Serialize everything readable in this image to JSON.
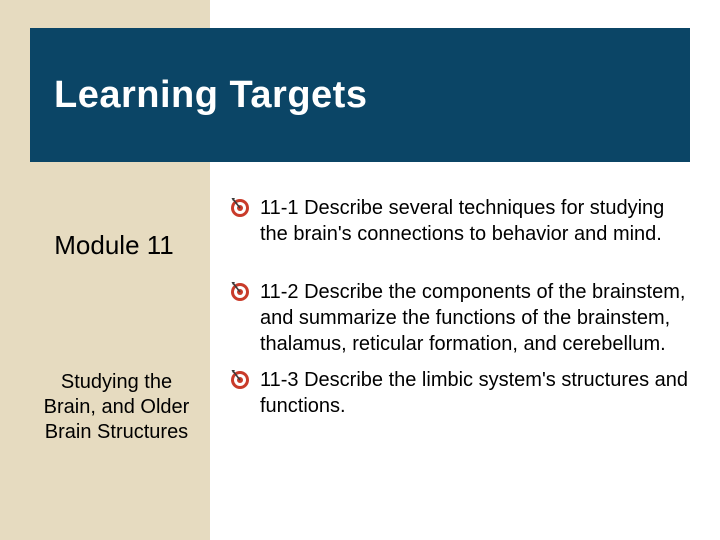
{
  "colors": {
    "sidebar_bg": "#e6dbc0",
    "title_bg": "#0b4566",
    "title_text": "#ffffff",
    "body_text": "#000000",
    "icon_outer": "#c93b2a",
    "icon_mid": "#ffffff",
    "icon_center": "#c93b2a",
    "icon_arrow": "#3a3a3a"
  },
  "title": "Learning Targets",
  "module": {
    "label": "Module 11",
    "subtitle": "Studying the Brain, and Older Brain Structures"
  },
  "targets": [
    {
      "text": "11-1 Describe several techniques for studying the brain's connections to behavior and mind.",
      "gap": true
    },
    {
      "text": "11-2  Describe the components of the brainstem, and summarize the functions of the brainstem, thalamus, reticular formation, and cerebellum.",
      "gap": false
    },
    {
      "text": "11-3  Describe the limbic system's structures and functions.",
      "gap": false
    }
  ]
}
